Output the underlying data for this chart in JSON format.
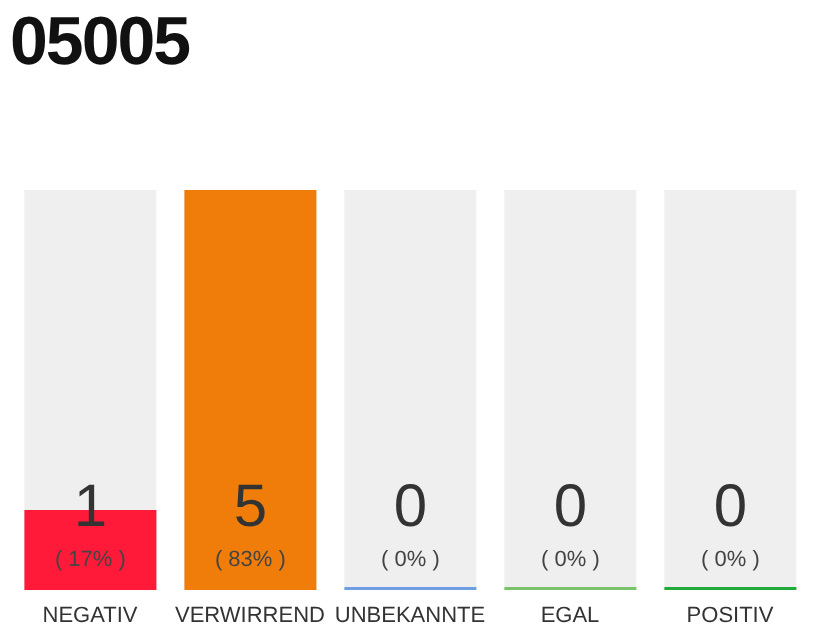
{
  "chart_data": {
    "type": "bar",
    "title": "05005",
    "categories": [
      "NEGATIV",
      "VERWIRREND",
      "UNBEKANNTE",
      "EGAL",
      "POSITIV"
    ],
    "values": [
      1,
      5,
      0,
      0,
      0
    ],
    "colors": [
      "#ff1a3a",
      "#f07d0a",
      "#6f9fe0",
      "#7ac36a",
      "#1faa3a"
    ],
    "data_labels": true,
    "annotations": [
      "( 17% )",
      "( 83% )",
      "( 0% )",
      "( 0% )",
      "( 0% )"
    ]
  }
}
